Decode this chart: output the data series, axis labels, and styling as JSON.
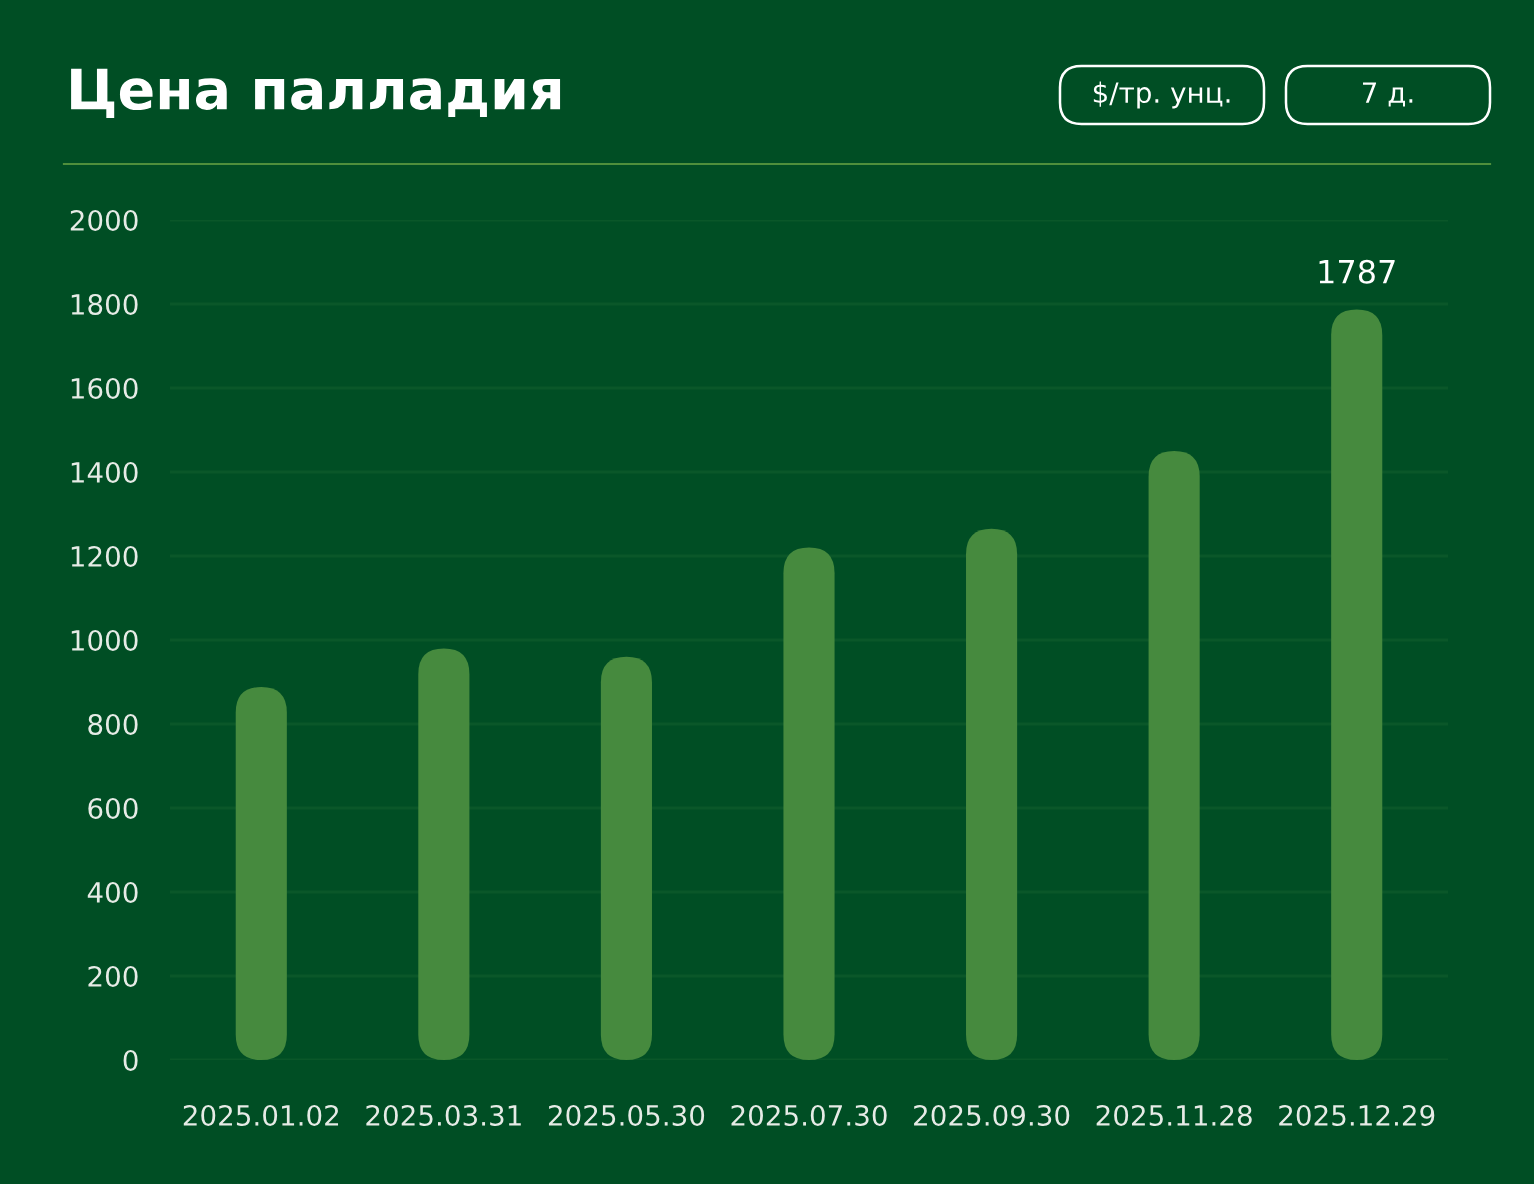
{
  "chart_data": {
    "type": "bar",
    "title": "Цена палладия",
    "annotations": [
      "$/тр. унц.",
      "7 д."
    ],
    "categories": [
      "2025.01.02",
      "2025.03.31",
      "2025.05.30",
      "2025.07.30",
      "2025.09.30",
      "2025.11.28",
      "2025.12.29"
    ],
    "values": [
      888,
      980,
      960,
      1220,
      1265,
      1450,
      1787
    ],
    "value_labels": [
      null,
      null,
      null,
      null,
      null,
      null,
      "1787"
    ],
    "color": "#468a3e",
    "ylim": [
      0,
      2000
    ],
    "yticks": [
      0,
      200,
      400,
      600,
      800,
      1000,
      1200,
      1400,
      1600,
      1800,
      2000
    ],
    "grid": "y"
  }
}
